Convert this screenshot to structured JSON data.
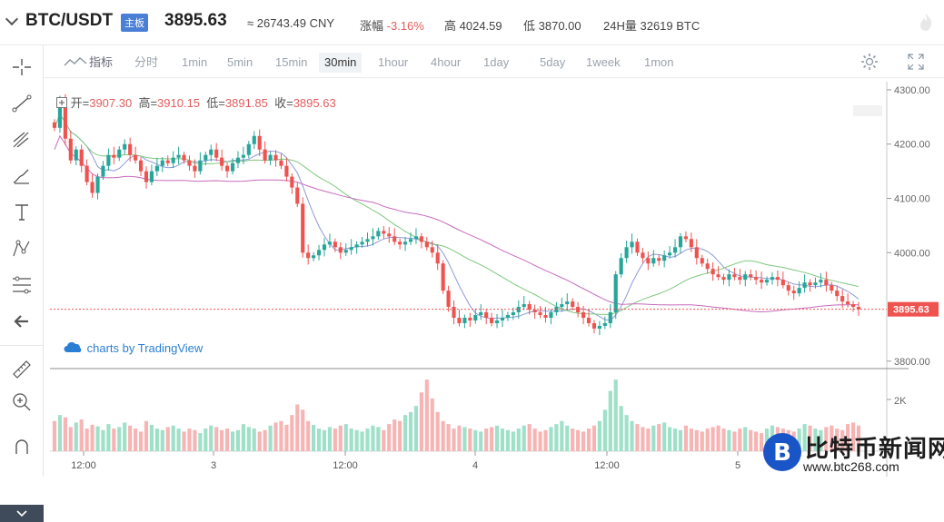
{
  "header": {
    "symbol": "BTC/USDT",
    "badge": "主板",
    "price": "3895.63",
    "cny": "≈ 26743.49 CNY",
    "change_label": "涨幅",
    "change_value": "-3.16%",
    "high_label": "高",
    "high_value": "4024.59",
    "low_label": "低",
    "low_value": "3870.00",
    "vol_label": "24H量",
    "vol_value": "32619 BTC"
  },
  "toolbar": {
    "indicator_label": "指标",
    "timeframes": [
      "分时",
      "1min",
      "5min",
      "15min",
      "30min",
      "1hour",
      "4hour",
      "1day",
      "5day",
      "1week",
      "1mon"
    ],
    "active_timeframe": "30min"
  },
  "legend": {
    "open_label": "开=",
    "open_value": "3907.30",
    "high_label": "高=",
    "high_value": "3910.15",
    "low_label": "低=",
    "low_value": "3891.85",
    "close_label": "收=",
    "close_value": "3895.63"
  },
  "branding": "charts by TradingView",
  "watermark": {
    "title": "比特币新闻网",
    "url": "www.btc268.com"
  },
  "colors": {
    "up": "#26a69a",
    "down": "#ef5350",
    "ma_short": "#8e9ad8",
    "ma_mid": "#7fc87f",
    "ma_long": "#c76bbd",
    "vol_up": "#9fe0c9",
    "vol_down": "#f7b4b4"
  },
  "chart_data": {
    "type": "candlestick",
    "y_ticks": [
      "4300.00",
      "4200.00",
      "4100.00",
      "4000.00",
      "3800.00"
    ],
    "y_tick_values": [
      4300,
      4200,
      4100,
      4000,
      3800
    ],
    "ylim": [
      3788,
      4315
    ],
    "last_price": "3895.63",
    "last_price_value": 3895.63,
    "x_ticks": [
      "12:00",
      "3",
      "12:00",
      "4",
      "12:00",
      "5"
    ],
    "volume_tick": "2K",
    "candle_count": 150,
    "closes": [
      4230,
      4280,
      4210,
      4170,
      4190,
      4160,
      4130,
      4110,
      4140,
      4160,
      4180,
      4175,
      4190,
      4200,
      4180,
      4170,
      4150,
      4130,
      4150,
      4160,
      4170,
      4165,
      4175,
      4180,
      4170,
      4160,
      4150,
      4170,
      4180,
      4190,
      4175,
      4160,
      4150,
      4165,
      4175,
      4180,
      4200,
      4215,
      4190,
      4170,
      4180,
      4170,
      4160,
      4140,
      4120,
      4090,
      4000,
      3990,
      3995,
      4005,
      4015,
      4020,
      4010,
      4000,
      4005,
      4010,
      4015,
      4020,
      4025,
      4030,
      4040,
      4035,
      4030,
      4020,
      4015,
      4020,
      4025,
      4030,
      4020,
      4010,
      4000,
      3980,
      3930,
      3900,
      3880,
      3870,
      3880,
      3875,
      3885,
      3890,
      3880,
      3870,
      3875,
      3880,
      3885,
      3890,
      3900,
      3905,
      3895,
      3890,
      3885,
      3880,
      3890,
      3900,
      3905,
      3910,
      3900,
      3890,
      3880,
      3870,
      3860,
      3865,
      3870,
      3890,
      3960,
      3990,
      4010,
      4020,
      4000,
      3990,
      3980,
      3990,
      3985,
      3995,
      4000,
      4010,
      4030,
      4025,
      4010,
      3990,
      3980,
      3970,
      3960,
      3955,
      3950,
      3960,
      3955,
      3950,
      3960,
      3955,
      3950,
      3945,
      3950,
      3955,
      3950,
      3940,
      3930,
      3925,
      3935,
      3945,
      3940,
      3945,
      3950,
      3940,
      3930,
      3920,
      3910,
      3905,
      3900,
      3895.63
    ],
    "volumes": [
      40,
      48,
      45,
      32,
      38,
      42,
      30,
      35,
      33,
      28,
      36,
      30,
      32,
      38,
      34,
      30,
      26,
      40,
      35,
      30,
      28,
      32,
      34,
      30,
      26,
      30,
      28,
      24,
      30,
      34,
      32,
      28,
      30,
      26,
      28,
      36,
      32,
      30,
      26,
      28,
      34,
      38,
      40,
      35,
      48,
      62,
      55,
      40,
      35,
      30,
      28,
      32,
      30,
      34,
      36,
      30,
      28,
      26,
      30,
      34,
      32,
      28,
      36,
      42,
      40,
      48,
      52,
      60,
      78,
      95,
      70,
      52,
      40,
      36,
      30,
      34,
      32,
      30,
      28,
      26,
      30,
      32,
      34,
      30,
      28,
      26,
      30,
      34,
      36,
      30,
      26,
      28,
      32,
      36,
      40,
      34,
      30,
      28,
      26,
      30,
      34,
      40,
      55,
      80,
      95,
      60,
      48,
      40,
      36,
      32,
      30,
      34,
      36,
      38,
      32,
      30,
      28,
      34,
      30,
      28,
      26,
      30,
      32,
      34,
      30,
      28,
      26,
      30,
      32,
      28,
      26,
      24,
      30,
      34,
      32,
      30,
      28,
      26,
      30,
      36,
      34,
      30,
      28,
      32,
      34,
      30,
      28,
      36,
      38,
      34
    ]
  }
}
